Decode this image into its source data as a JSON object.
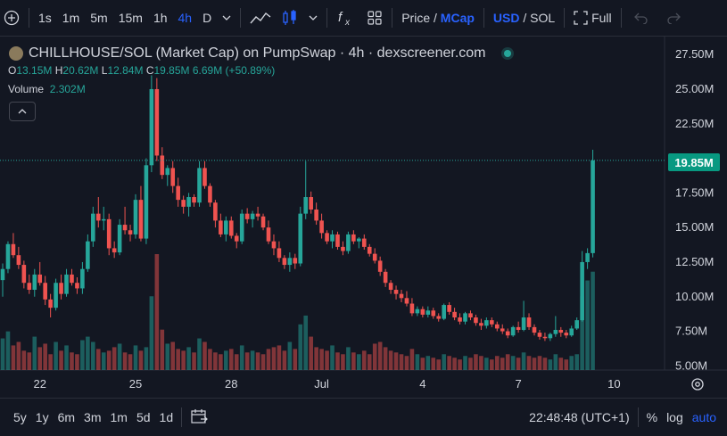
{
  "toolbar": {
    "intervals": [
      "1s",
      "1m",
      "5m",
      "15m",
      "1h",
      "4h",
      "D"
    ],
    "active_interval": "4h",
    "price_label": "Price",
    "slash": "/",
    "mcap_label": "MCap",
    "usd_label": "USD",
    "sol_label": "SOL",
    "full_label": "Full"
  },
  "legend": {
    "title": "CHILLHOUSE/SOL (Market Cap) on PumpSwap · 4h · dexscreener.com",
    "o_label": "O",
    "o_value": "13.15M",
    "h_label": "H",
    "h_value": "20.62M",
    "l_label": "L",
    "l_value": "12.84M",
    "c_label": "C",
    "c_value": "19.85M",
    "change": "6.69M (+50.89%)",
    "volume_label": "Volume",
    "volume_value": "2.302M"
  },
  "current_price_tag": "19.85M",
  "bottom": {
    "ranges": [
      "5y",
      "1y",
      "6m",
      "3m",
      "1m",
      "5d",
      "1d"
    ],
    "time": "22:48:48 (UTC+1)",
    "percent": "%",
    "log": "log",
    "auto": "auto"
  },
  "colors": {
    "up": "#26a69a",
    "down": "#ef5350",
    "background": "#131722",
    "accent": "#2962ff"
  },
  "chart_data": {
    "type": "candlestick",
    "y_axis_ticks": [
      "27.50M",
      "25.00M",
      "22.50M",
      "20.00M",
      "17.50M",
      "15.00M",
      "12.50M",
      "10.00M",
      "7.50M",
      "5.00M"
    ],
    "ylim": [
      4.7,
      28.8
    ],
    "x_axis_ticks": [
      "22",
      "25",
      "28",
      "Jul",
      "4",
      "7",
      "10"
    ],
    "x_tick_index": [
      7,
      25,
      43,
      60,
      79,
      97,
      115
    ],
    "candles": [
      [
        11.2,
        12.4,
        10.0,
        12.0
      ],
      [
        12.0,
        14.0,
        11.7,
        13.8
      ],
      [
        13.8,
        14.6,
        12.8,
        13.0
      ],
      [
        13.0,
        13.6,
        12.0,
        12.3
      ],
      [
        12.3,
        12.6,
        10.6,
        11.0
      ],
      [
        11.0,
        11.6,
        10.2,
        10.5
      ],
      [
        10.5,
        12.0,
        10.0,
        11.6
      ],
      [
        11.6,
        12.5,
        10.8,
        11.0
      ],
      [
        11.0,
        11.5,
        9.4,
        9.8
      ],
      [
        9.8,
        10.2,
        8.5,
        9.2
      ],
      [
        9.2,
        11.3,
        9.0,
        11.0
      ],
      [
        11.0,
        11.6,
        9.8,
        10.2
      ],
      [
        10.2,
        12.0,
        10.0,
        11.6
      ],
      [
        11.6,
        12.0,
        10.8,
        11.0
      ],
      [
        11.0,
        11.4,
        10.2,
        10.6
      ],
      [
        10.6,
        12.5,
        10.2,
        12.0
      ],
      [
        12.0,
        14.5,
        11.8,
        14.0
      ],
      [
        14.0,
        16.5,
        13.6,
        16.0
      ],
      [
        16.0,
        17.2,
        15.0,
        15.5
      ],
      [
        15.5,
        16.5,
        14.8,
        15.6
      ],
      [
        15.6,
        16.0,
        13.0,
        13.5
      ],
      [
        13.5,
        14.0,
        12.8,
        13.2
      ],
      [
        13.2,
        15.6,
        13.0,
        15.2
      ],
      [
        15.2,
        16.5,
        14.5,
        14.8
      ],
      [
        14.8,
        15.2,
        14.0,
        14.5
      ],
      [
        14.5,
        17.4,
        14.2,
        17.0
      ],
      [
        17.0,
        18.0,
        14.0,
        14.2
      ],
      [
        14.2,
        20.0,
        13.8,
        19.5
      ],
      [
        19.5,
        26.0,
        19.0,
        25.0
      ],
      [
        25.0,
        25.8,
        19.8,
        20.2
      ],
      [
        20.2,
        20.8,
        18.5,
        18.8
      ],
      [
        18.8,
        19.5,
        18.0,
        19.3
      ],
      [
        19.3,
        19.8,
        17.5,
        18.0
      ],
      [
        18.0,
        18.6,
        16.5,
        17.0
      ],
      [
        17.0,
        17.3,
        16.0,
        16.5
      ],
      [
        16.5,
        17.5,
        15.8,
        17.2
      ],
      [
        17.2,
        17.4,
        16.5,
        16.8
      ],
      [
        16.8,
        19.8,
        16.5,
        19.3
      ],
      [
        19.3,
        19.8,
        17.8,
        18.0
      ],
      [
        18.0,
        18.2,
        16.5,
        16.8
      ],
      [
        16.8,
        17.0,
        15.0,
        15.5
      ],
      [
        15.5,
        16.0,
        14.3,
        14.5
      ],
      [
        14.5,
        15.8,
        14.0,
        15.5
      ],
      [
        15.5,
        15.8,
        14.2,
        14.4
      ],
      [
        14.4,
        14.6,
        13.5,
        14.0
      ],
      [
        14.0,
        16.3,
        13.8,
        16.0
      ],
      [
        16.0,
        16.4,
        15.3,
        15.6
      ],
      [
        15.6,
        16.2,
        15.0,
        16.0
      ],
      [
        16.0,
        16.5,
        15.5,
        15.8
      ],
      [
        15.8,
        16.0,
        14.8,
        15.0
      ],
      [
        15.0,
        15.5,
        13.8,
        14.0
      ],
      [
        14.0,
        14.5,
        13.0,
        13.5
      ],
      [
        13.5,
        14.0,
        12.5,
        12.8
      ],
      [
        12.8,
        13.0,
        12.0,
        12.3
      ],
      [
        12.3,
        13.2,
        11.8,
        12.8
      ],
      [
        12.8,
        13.1,
        12.0,
        12.4
      ],
      [
        12.4,
        16.5,
        12.2,
        16.0
      ],
      [
        16.0,
        19.8,
        15.6,
        17.2
      ],
      [
        17.2,
        17.6,
        16.0,
        16.3
      ],
      [
        16.3,
        16.8,
        15.2,
        15.5
      ],
      [
        15.5,
        16.0,
        14.2,
        14.6
      ],
      [
        14.6,
        14.8,
        13.8,
        14.0
      ],
      [
        14.0,
        14.8,
        13.5,
        14.5
      ],
      [
        14.5,
        14.7,
        13.4,
        13.6
      ],
      [
        13.6,
        14.0,
        13.0,
        13.3
      ],
      [
        13.3,
        14.7,
        13.1,
        14.5
      ],
      [
        14.5,
        14.8,
        13.8,
        14.0
      ],
      [
        14.0,
        14.3,
        13.5,
        14.2
      ],
      [
        14.2,
        14.5,
        13.4,
        13.6
      ],
      [
        13.6,
        13.8,
        12.9,
        13.1
      ],
      [
        13.1,
        13.5,
        12.4,
        12.6
      ],
      [
        12.6,
        12.9,
        11.5,
        11.8
      ],
      [
        11.8,
        12.0,
        10.7,
        11.0
      ],
      [
        11.0,
        11.2,
        10.2,
        10.5
      ],
      [
        10.5,
        10.8,
        9.8,
        10.2
      ],
      [
        10.2,
        10.5,
        9.6,
        9.9
      ],
      [
        9.9,
        10.4,
        9.3,
        9.5
      ],
      [
        9.5,
        9.9,
        8.6,
        8.8
      ],
      [
        8.8,
        9.3,
        8.6,
        9.1
      ],
      [
        9.1,
        9.3,
        8.5,
        8.7
      ],
      [
        8.7,
        9.3,
        8.5,
        9.0
      ],
      [
        9.0,
        9.2,
        8.4,
        8.6
      ],
      [
        8.6,
        8.8,
        8.2,
        8.4
      ],
      [
        8.4,
        9.5,
        8.3,
        9.4
      ],
      [
        9.4,
        9.6,
        8.7,
        8.9
      ],
      [
        8.9,
        9.2,
        8.3,
        8.5
      ],
      [
        8.5,
        8.8,
        8.0,
        8.2
      ],
      [
        8.2,
        8.9,
        8.0,
        8.8
      ],
      [
        8.8,
        9.0,
        8.3,
        8.5
      ],
      [
        8.5,
        8.7,
        7.9,
        8.1
      ],
      [
        8.1,
        8.4,
        7.6,
        7.9
      ],
      [
        7.9,
        8.5,
        7.7,
        8.3
      ],
      [
        8.3,
        8.5,
        7.8,
        8.0
      ],
      [
        8.0,
        8.2,
        7.5,
        7.7
      ],
      [
        7.7,
        8.0,
        7.3,
        7.5
      ],
      [
        7.5,
        7.7,
        7.0,
        7.2
      ],
      [
        7.2,
        7.9,
        7.1,
        7.8
      ],
      [
        7.8,
        8.2,
        7.4,
        7.6
      ],
      [
        7.6,
        9.7,
        7.5,
        8.5
      ],
      [
        8.5,
        8.8,
        7.6,
        7.8
      ],
      [
        7.8,
        8.0,
        7.2,
        7.4
      ],
      [
        7.4,
        7.6,
        6.9,
        7.1
      ],
      [
        7.1,
        7.4,
        6.8,
        7.0
      ],
      [
        7.0,
        7.4,
        6.8,
        7.3
      ],
      [
        7.3,
        8.6,
        7.1,
        7.6
      ],
      [
        7.6,
        7.8,
        7.1,
        7.4
      ],
      [
        7.4,
        7.6,
        7.0,
        7.2
      ],
      [
        7.2,
        7.9,
        7.1,
        7.7
      ],
      [
        7.7,
        8.5,
        7.6,
        8.3
      ],
      [
        8.3,
        13.3,
        8.2,
        12.5
      ],
      [
        12.5,
        13.5,
        12.0,
        13.15
      ],
      [
        13.15,
        20.62,
        12.84,
        19.85
      ]
    ],
    "volume": [
      1.8,
      2.2,
      1.4,
      1.6,
      1.1,
      1.0,
      1.9,
      1.3,
      1.5,
      0.9,
      1.6,
      1.1,
      1.4,
      1.0,
      0.9,
      1.7,
      1.9,
      1.6,
      1.2,
      1.0,
      1.1,
      1.3,
      1.5,
      1.0,
      0.9,
      1.4,
      1.1,
      1.3,
      4.2,
      6.6,
      2.3,
      1.5,
      1.6,
      1.2,
      1.1,
      1.3,
      1.0,
      1.8,
      1.6,
      1.2,
      1.0,
      0.9,
      1.1,
      1.2,
      0.9,
      1.4,
      1.0,
      1.1,
      1.0,
      0.9,
      1.2,
      1.3,
      1.4,
      1.1,
      1.6,
      1.2,
      2.6,
      3.1,
      1.9,
      1.3,
      1.2,
      1.1,
      1.4,
      1.0,
      0.9,
      1.3,
      1.0,
      0.9,
      1.1,
      0.9,
      1.5,
      1.6,
      1.3,
      1.1,
      1.0,
      0.9,
      0.8,
      1.2,
      0.9,
      0.7,
      0.8,
      0.7,
      0.6,
      0.9,
      0.8,
      0.7,
      0.6,
      0.8,
      0.7,
      0.9,
      0.8,
      0.7,
      0.6,
      0.8,
      0.7,
      0.9,
      0.8,
      0.7,
      1.0,
      0.8,
      0.7,
      0.8,
      0.7,
      0.6,
      0.9,
      0.7,
      0.6,
      0.8,
      0.9,
      4.2,
      5.1,
      5.6
    ],
    "current_price": 19.85
  }
}
